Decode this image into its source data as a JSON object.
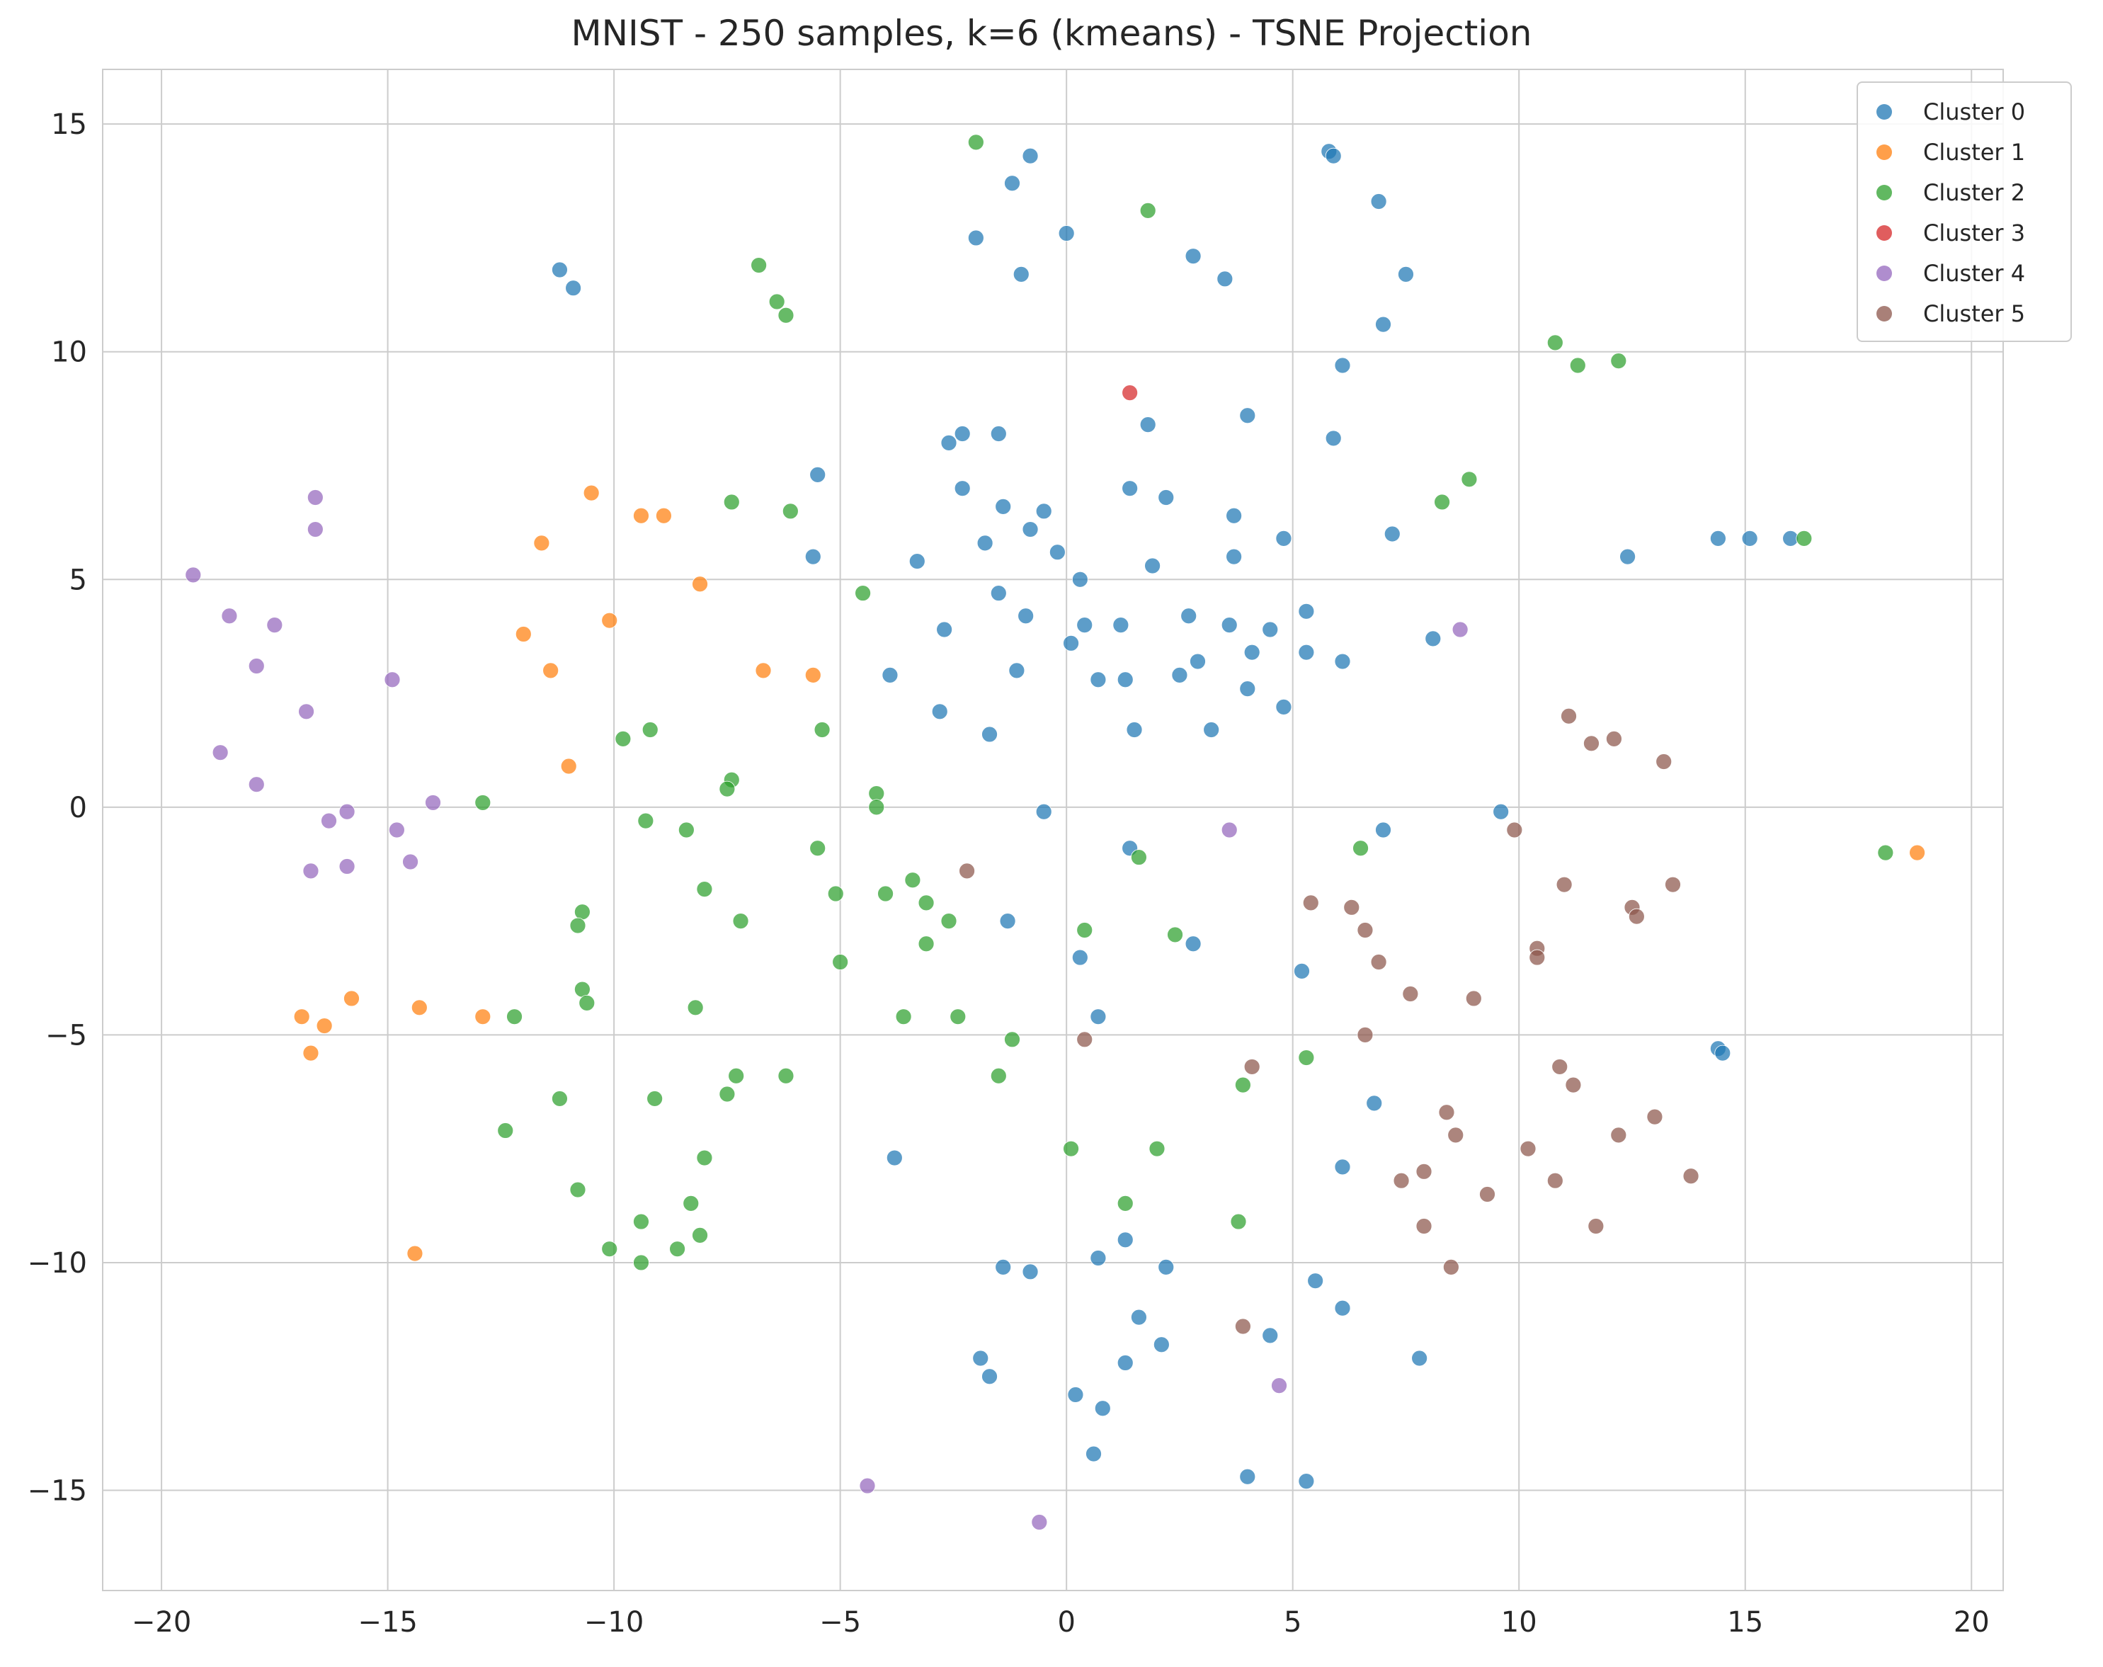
{
  "chart_data": {
    "type": "scatter",
    "title": "MNIST - 250 samples, k=6 (kmeans) - TSNE Projection",
    "xlabel": "",
    "ylabel": "",
    "xlim": [
      -21.3,
      20.7
    ],
    "ylim": [
      -17.2,
      16.2
    ],
    "xticks": [
      -20,
      -15,
      -10,
      -5,
      0,
      5,
      10,
      15,
      20
    ],
    "yticks": [
      -15,
      -10,
      -5,
      0,
      5,
      10,
      15
    ],
    "xtick_labels": [
      "−20",
      "−15",
      "−10",
      "−5",
      "0",
      "5",
      "10",
      "15",
      "20"
    ],
    "ytick_labels": [
      "−15",
      "−10",
      "−5",
      "0",
      "5",
      "10",
      "15"
    ],
    "grid": true,
    "legend_position": "top-right",
    "series": [
      {
        "name": "Cluster 0",
        "color": "#1f77b4",
        "points": [
          [
            -11.2,
            11.8
          ],
          [
            -10.9,
            11.4
          ],
          [
            -1.2,
            13.7
          ],
          [
            -0.8,
            14.3
          ],
          [
            -2.0,
            12.5
          ],
          [
            0.0,
            12.6
          ],
          [
            -1.0,
            11.7
          ],
          [
            2.8,
            12.1
          ],
          [
            3.5,
            11.6
          ],
          [
            5.8,
            14.4
          ],
          [
            5.9,
            14.3
          ],
          [
            6.9,
            13.3
          ],
          [
            7.5,
            11.7
          ],
          [
            7.0,
            10.6
          ],
          [
            6.1,
            9.7
          ],
          [
            4.0,
            8.6
          ],
          [
            5.9,
            8.1
          ],
          [
            1.8,
            8.4
          ],
          [
            -2.6,
            8.0
          ],
          [
            -2.3,
            8.2
          ],
          [
            -1.5,
            8.2
          ],
          [
            -2.3,
            7.0
          ],
          [
            -1.4,
            6.6
          ],
          [
            -0.5,
            6.5
          ],
          [
            -0.8,
            6.1
          ],
          [
            -1.8,
            5.8
          ],
          [
            1.4,
            7.0
          ],
          [
            2.2,
            6.8
          ],
          [
            3.7,
            6.4
          ],
          [
            -5.5,
            7.3
          ],
          [
            -5.6,
            5.5
          ],
          [
            -3.3,
            5.4
          ],
          [
            -0.2,
            5.6
          ],
          [
            0.3,
            5.0
          ],
          [
            1.9,
            5.3
          ],
          [
            3.7,
            5.5
          ],
          [
            4.8,
            5.9
          ],
          [
            7.2,
            6.0
          ],
          [
            12.4,
            5.5
          ],
          [
            14.4,
            5.9
          ],
          [
            15.1,
            5.9
          ],
          [
            16.0,
            5.9
          ],
          [
            -1.5,
            4.7
          ],
          [
            -0.9,
            4.2
          ],
          [
            -2.7,
            3.9
          ],
          [
            0.4,
            4.0
          ],
          [
            1.2,
            4.0
          ],
          [
            0.1,
            3.6
          ],
          [
            2.7,
            4.2
          ],
          [
            3.6,
            4.0
          ],
          [
            4.5,
            3.9
          ],
          [
            5.3,
            4.3
          ],
          [
            4.1,
            3.4
          ],
          [
            5.3,
            3.4
          ],
          [
            -3.9,
            2.9
          ],
          [
            -1.1,
            3.0
          ],
          [
            0.7,
            2.8
          ],
          [
            1.3,
            2.8
          ],
          [
            2.5,
            2.9
          ],
          [
            2.9,
            3.2
          ],
          [
            4.0,
            2.6
          ],
          [
            4.8,
            2.2
          ],
          [
            6.1,
            3.2
          ],
          [
            8.1,
            3.7
          ],
          [
            -2.8,
            2.1
          ],
          [
            -1.7,
            1.6
          ],
          [
            1.5,
            1.7
          ],
          [
            3.2,
            1.7
          ],
          [
            -0.5,
            -0.1
          ],
          [
            9.6,
            -0.1
          ],
          [
            7.0,
            -0.5
          ],
          [
            1.4,
            -0.9
          ],
          [
            -1.3,
            -2.5
          ],
          [
            0.3,
            -3.3
          ],
          [
            2.8,
            -3.0
          ],
          [
            5.2,
            -3.6
          ],
          [
            0.7,
            -4.6
          ],
          [
            6.8,
            -6.5
          ],
          [
            -3.8,
            -7.7
          ],
          [
            6.1,
            -7.9
          ],
          [
            1.3,
            -9.5
          ],
          [
            -1.4,
            -10.1
          ],
          [
            -0.8,
            -10.2
          ],
          [
            0.7,
            -9.9
          ],
          [
            2.2,
            -10.1
          ],
          [
            5.5,
            -10.4
          ],
          [
            6.1,
            -11.0
          ],
          [
            1.6,
            -11.2
          ],
          [
            4.5,
            -11.6
          ],
          [
            2.1,
            -11.8
          ],
          [
            -1.9,
            -12.1
          ],
          [
            -1.7,
            -12.5
          ],
          [
            1.3,
            -12.2
          ],
          [
            7.8,
            -12.1
          ],
          [
            0.2,
            -12.9
          ],
          [
            0.8,
            -13.2
          ],
          [
            0.6,
            -14.2
          ],
          [
            4.0,
            -14.7
          ],
          [
            5.3,
            -14.8
          ],
          [
            14.4,
            -5.3
          ],
          [
            14.5,
            -5.4
          ]
        ]
      },
      {
        "name": "Cluster 1",
        "color": "#ff7f0e",
        "points": [
          [
            -10.5,
            6.9
          ],
          [
            -11.6,
            5.8
          ],
          [
            -9.4,
            6.4
          ],
          [
            -8.9,
            6.4
          ],
          [
            -8.1,
            4.9
          ],
          [
            -10.1,
            4.1
          ],
          [
            -12.0,
            3.8
          ],
          [
            -11.4,
            3.0
          ],
          [
            -6.7,
            3.0
          ],
          [
            -5.6,
            2.9
          ],
          [
            -11.0,
            0.9
          ],
          [
            18.8,
            -1.0
          ],
          [
            -16.9,
            -4.6
          ],
          [
            -16.4,
            -4.8
          ],
          [
            -15.8,
            -4.2
          ],
          [
            -14.3,
            -4.4
          ],
          [
            -12.9,
            -4.6
          ],
          [
            -16.7,
            -5.4
          ],
          [
            -14.4,
            -9.8
          ]
        ]
      },
      {
        "name": "Cluster 2",
        "color": "#2ca02c",
        "points": [
          [
            -2.0,
            14.6
          ],
          [
            1.8,
            13.1
          ],
          [
            -6.8,
            11.9
          ],
          [
            -6.4,
            11.1
          ],
          [
            -6.2,
            10.8
          ],
          [
            10.8,
            10.2
          ],
          [
            11.3,
            9.7
          ],
          [
            12.2,
            9.8
          ],
          [
            8.9,
            7.2
          ],
          [
            8.3,
            6.7
          ],
          [
            16.3,
            5.9
          ],
          [
            -7.4,
            6.7
          ],
          [
            -6.1,
            6.5
          ],
          [
            -4.5,
            4.7
          ],
          [
            -9.8,
            1.5
          ],
          [
            -9.2,
            1.7
          ],
          [
            -5.4,
            1.7
          ],
          [
            -7.4,
            0.6
          ],
          [
            -7.5,
            0.4
          ],
          [
            -4.2,
            0.3
          ],
          [
            -4.2,
            0.0
          ],
          [
            -12.9,
            0.1
          ],
          [
            -9.3,
            -0.3
          ],
          [
            -8.4,
            -0.5
          ],
          [
            -5.5,
            -0.9
          ],
          [
            6.5,
            -0.9
          ],
          [
            1.6,
            -1.1
          ],
          [
            18.1,
            -1.0
          ],
          [
            -8.0,
            -1.8
          ],
          [
            -5.1,
            -1.9
          ],
          [
            -4.0,
            -1.9
          ],
          [
            -3.4,
            -1.6
          ],
          [
            -3.1,
            -2.1
          ],
          [
            -10.7,
            -2.3
          ],
          [
            -10.8,
            -2.6
          ],
          [
            -7.2,
            -2.5
          ],
          [
            -2.6,
            -2.5
          ],
          [
            0.4,
            -2.7
          ],
          [
            2.4,
            -2.8
          ],
          [
            -5.0,
            -3.4
          ],
          [
            -3.1,
            -3.0
          ],
          [
            -10.7,
            -4.0
          ],
          [
            -10.6,
            -4.3
          ],
          [
            -8.2,
            -4.4
          ],
          [
            -12.2,
            -4.6
          ],
          [
            -3.6,
            -4.6
          ],
          [
            -2.4,
            -4.6
          ],
          [
            -1.2,
            -5.1
          ],
          [
            -7.3,
            -5.9
          ],
          [
            -6.2,
            -5.9
          ],
          [
            -1.5,
            -5.9
          ],
          [
            3.9,
            -6.1
          ],
          [
            5.3,
            -5.5
          ],
          [
            -11.2,
            -6.4
          ],
          [
            -9.1,
            -6.4
          ],
          [
            -7.5,
            -6.3
          ],
          [
            -12.4,
            -7.1
          ],
          [
            0.1,
            -7.5
          ],
          [
            2.0,
            -7.5
          ],
          [
            -8.0,
            -7.7
          ],
          [
            -10.8,
            -8.4
          ],
          [
            -8.3,
            -8.7
          ],
          [
            1.3,
            -8.7
          ],
          [
            -9.4,
            -9.1
          ],
          [
            3.8,
            -9.1
          ],
          [
            -8.1,
            -9.4
          ],
          [
            -10.1,
            -9.7
          ],
          [
            -8.6,
            -9.7
          ],
          [
            -9.4,
            -10.0
          ]
        ]
      },
      {
        "name": "Cluster 3",
        "color": "#d62728",
        "points": [
          [
            1.4,
            9.1
          ]
        ]
      },
      {
        "name": "Cluster 4",
        "color": "#9467bd",
        "points": [
          [
            -16.6,
            6.8
          ],
          [
            -16.6,
            6.1
          ],
          [
            -19.3,
            5.1
          ],
          [
            -18.5,
            4.2
          ],
          [
            -17.5,
            4.0
          ],
          [
            -17.9,
            3.1
          ],
          [
            -14.9,
            2.8
          ],
          [
            -16.8,
            2.1
          ],
          [
            -18.7,
            1.2
          ],
          [
            -17.9,
            0.5
          ],
          [
            -16.3,
            -0.3
          ],
          [
            -15.9,
            -0.1
          ],
          [
            -14.0,
            0.1
          ],
          [
            -14.8,
            -0.5
          ],
          [
            -16.7,
            -1.4
          ],
          [
            -15.9,
            -1.3
          ],
          [
            -14.5,
            -1.2
          ],
          [
            3.6,
            -0.5
          ],
          [
            8.7,
            3.9
          ],
          [
            4.7,
            -12.7
          ],
          [
            -4.4,
            -14.9
          ],
          [
            -0.6,
            -15.7
          ]
        ]
      },
      {
        "name": "Cluster 5",
        "color": "#8c564b",
        "points": [
          [
            11.1,
            2.0
          ],
          [
            11.6,
            1.4
          ],
          [
            12.1,
            1.5
          ],
          [
            13.2,
            1.0
          ],
          [
            9.9,
            -0.5
          ],
          [
            11.0,
            -1.7
          ],
          [
            13.4,
            -1.7
          ],
          [
            -2.2,
            -1.4
          ],
          [
            5.4,
            -2.1
          ],
          [
            6.3,
            -2.2
          ],
          [
            6.6,
            -2.7
          ],
          [
            12.5,
            -2.2
          ],
          [
            12.6,
            -2.4
          ],
          [
            10.4,
            -3.1
          ],
          [
            10.4,
            -3.3
          ],
          [
            6.9,
            -3.4
          ],
          [
            7.6,
            -4.1
          ],
          [
            9.0,
            -4.2
          ],
          [
            6.6,
            -5.0
          ],
          [
            0.4,
            -5.1
          ],
          [
            4.1,
            -5.7
          ],
          [
            10.9,
            -5.7
          ],
          [
            11.2,
            -6.1
          ],
          [
            8.4,
            -6.7
          ],
          [
            13.0,
            -6.8
          ],
          [
            8.6,
            -7.2
          ],
          [
            12.2,
            -7.2
          ],
          [
            10.2,
            -7.5
          ],
          [
            7.4,
            -8.2
          ],
          [
            7.9,
            -8.0
          ],
          [
            10.8,
            -8.2
          ],
          [
            13.8,
            -8.1
          ],
          [
            9.3,
            -8.5
          ],
          [
            7.9,
            -9.2
          ],
          [
            11.7,
            -9.2
          ],
          [
            8.5,
            -10.1
          ],
          [
            3.9,
            -11.4
          ]
        ]
      }
    ]
  }
}
